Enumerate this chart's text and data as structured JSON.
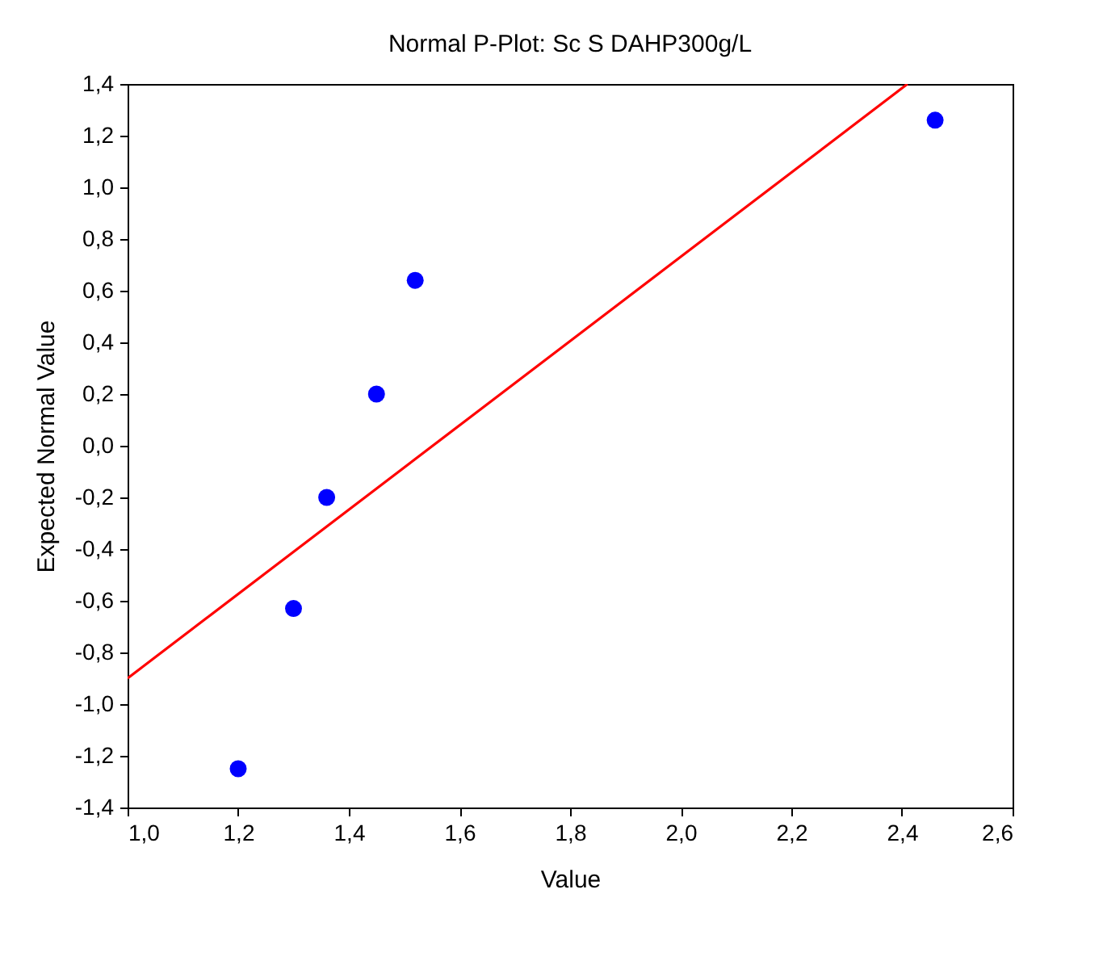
{
  "chart_data": {
    "type": "scatter",
    "title": "Normal P-Plot: Sc S DAHP300g/L",
    "xlabel": "Value",
    "ylabel": "Expected Normal Value",
    "series": [
      {
        "marker": "circle",
        "color": "#0000ff",
        "x": [
          1.2,
          1.3,
          1.36,
          1.45,
          1.52,
          2.46
        ],
        "values": [
          -1.25,
          -0.63,
          -0.2,
          0.2,
          0.64,
          1.26
        ]
      },
      {
        "type": "line",
        "color": "#ff0000",
        "x": [
          1.0,
          2.41
        ],
        "values": [
          -0.9,
          1.4
        ]
      }
    ],
    "line_style": "solid",
    "grid": false,
    "xlim": [
      1.0,
      2.6
    ],
    "ylim": [
      -1.4,
      1.4
    ],
    "xticks": [
      {
        "value": 1.0,
        "label": "1,0"
      },
      {
        "value": 1.2,
        "label": "1,2"
      },
      {
        "value": 1.4,
        "label": "1,4"
      },
      {
        "value": 1.6,
        "label": "1,6"
      },
      {
        "value": 1.8,
        "label": "1,8"
      },
      {
        "value": 2.0,
        "label": "2,0"
      },
      {
        "value": 2.2,
        "label": "2,2"
      },
      {
        "value": 2.4,
        "label": "2,4"
      },
      {
        "value": 2.6,
        "label": "2,6"
      }
    ],
    "yticks": [
      {
        "value": -1.4,
        "label": "-1,4"
      },
      {
        "value": -1.2,
        "label": "-1,2"
      },
      {
        "value": -1.0,
        "label": "-1,0"
      },
      {
        "value": -0.8,
        "label": "-0,8"
      },
      {
        "value": -0.6,
        "label": "-0,6"
      },
      {
        "value": -0.4,
        "label": "-0,4"
      },
      {
        "value": -0.2,
        "label": "-0,2"
      },
      {
        "value": 0.0,
        "label": "0,0"
      },
      {
        "value": 0.2,
        "label": "0,2"
      },
      {
        "value": 0.4,
        "label": "0,4"
      },
      {
        "value": 0.6,
        "label": "0,6"
      },
      {
        "value": 0.8,
        "label": "0,8"
      },
      {
        "value": 1.0,
        "label": "1,0"
      },
      {
        "value": 1.2,
        "label": "1,2"
      },
      {
        "value": 1.4,
        "label": "1,4"
      }
    ]
  }
}
